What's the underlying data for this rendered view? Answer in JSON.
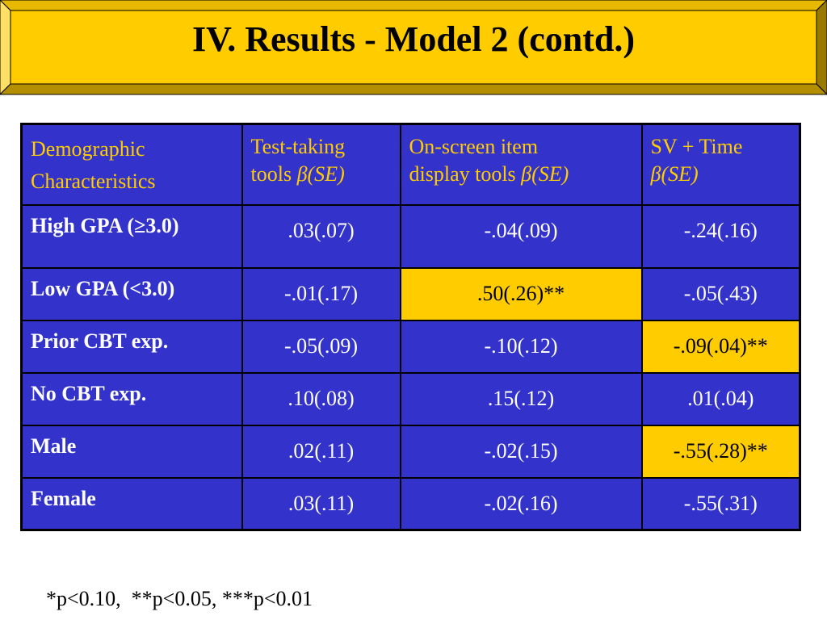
{
  "title": "IV. Results - Model 2 (contd.)",
  "colors": {
    "banner": "#ffcc00",
    "table_bg": "#3333cc",
    "header_text": "#ffcc00",
    "highlight": "#ffcc00"
  },
  "table": {
    "headers": [
      {
        "line1": "Demographic",
        "line2": "Characteristics"
      },
      {
        "line1": "Test-taking",
        "line2_text": "tools ",
        "line2_beta": "β(SE)"
      },
      {
        "line1": "On-screen item",
        "line2_text": "display tools ",
        "line2_beta": "β(SE)"
      },
      {
        "line1": "SV + Time",
        "line2_beta": "β(SE)"
      }
    ],
    "rows": [
      {
        "label": "High GPA (≥3.0)",
        "values": [
          ".03(.07)",
          "-.04(.09)",
          "-.24(.16)"
        ]
      },
      {
        "label": "Low GPA (<3.0)",
        "values": [
          "-.01(.17)",
          ".50(.26)**",
          "-.05(.43)"
        ]
      },
      {
        "label": "Prior CBT exp.",
        "values": [
          "-.05(.09)",
          "-.10(.12)",
          "-.09(.04)**"
        ]
      },
      {
        "label": "No CBT exp.",
        "values": [
          ".10(.08)",
          ".15(.12)",
          ".01(.04)"
        ]
      },
      {
        "label": "Male",
        "values": [
          ".02(.11)",
          "-.02(.15)",
          "-.55(.28)**"
        ]
      },
      {
        "label": "Female",
        "values": [
          ".03(.11)",
          "-.02(.16)",
          "-.55(.31)"
        ]
      }
    ]
  },
  "footnote": "*p<0.10,  **p<0.05, ***p<0.01"
}
